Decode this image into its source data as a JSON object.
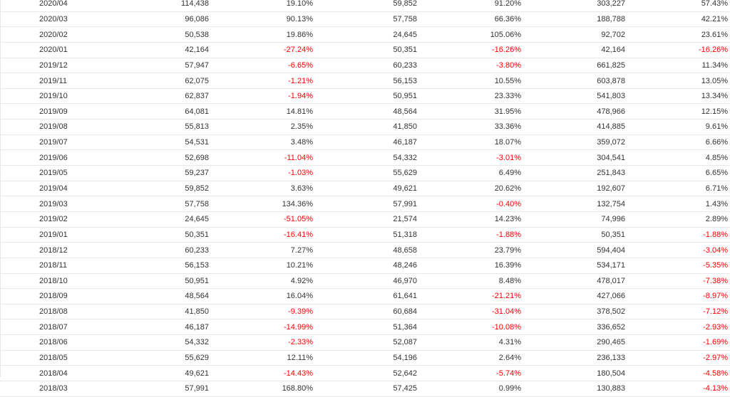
{
  "table": {
    "rows": [
      {
        "month": "2020/04",
        "v1": "114,438",
        "p1": "19.10%",
        "v2": "59,852",
        "p2": "91.20%",
        "v3": "303,227",
        "p3": "57.43%"
      },
      {
        "month": "2020/03",
        "v1": "96,086",
        "p1": "90.13%",
        "v2": "57,758",
        "p2": "66.36%",
        "v3": "188,788",
        "p3": "42.21%"
      },
      {
        "month": "2020/02",
        "v1": "50,538",
        "p1": "19.86%",
        "v2": "24,645",
        "p2": "105.06%",
        "v3": "92,702",
        "p3": "23.61%"
      },
      {
        "month": "2020/01",
        "v1": "42,164",
        "p1": "-27.24%",
        "v2": "50,351",
        "p2": "-16.26%",
        "v3": "42,164",
        "p3": "-16.26%"
      },
      {
        "month": "2019/12",
        "v1": "57,947",
        "p1": "-6.65%",
        "v2": "60,233",
        "p2": "-3.80%",
        "v3": "661,825",
        "p3": "11.34%"
      },
      {
        "month": "2019/11",
        "v1": "62,075",
        "p1": "-1.21%",
        "v2": "56,153",
        "p2": "10.55%",
        "v3": "603,878",
        "p3": "13.05%"
      },
      {
        "month": "2019/10",
        "v1": "62,837",
        "p1": "-1.94%",
        "v2": "50,951",
        "p2": "23.33%",
        "v3": "541,803",
        "p3": "13.34%"
      },
      {
        "month": "2019/09",
        "v1": "64,081",
        "p1": "14.81%",
        "v2": "48,564",
        "p2": "31.95%",
        "v3": "478,966",
        "p3": "12.15%"
      },
      {
        "month": "2019/08",
        "v1": "55,813",
        "p1": "2.35%",
        "v2": "41,850",
        "p2": "33.36%",
        "v3": "414,885",
        "p3": "9.61%"
      },
      {
        "month": "2019/07",
        "v1": "54,531",
        "p1": "3.48%",
        "v2": "46,187",
        "p2": "18.07%",
        "v3": "359,072",
        "p3": "6.66%"
      },
      {
        "month": "2019/06",
        "v1": "52,698",
        "p1": "-11.04%",
        "v2": "54,332",
        "p2": "-3.01%",
        "v3": "304,541",
        "p3": "4.85%"
      },
      {
        "month": "2019/05",
        "v1": "59,237",
        "p1": "-1.03%",
        "v2": "55,629",
        "p2": "6.49%",
        "v3": "251,843",
        "p3": "6.65%"
      },
      {
        "month": "2019/04",
        "v1": "59,852",
        "p1": "3.63%",
        "v2": "49,621",
        "p2": "20.62%",
        "v3": "192,607",
        "p3": "6.71%"
      },
      {
        "month": "2019/03",
        "v1": "57,758",
        "p1": "134.36%",
        "v2": "57,991",
        "p2": "-0.40%",
        "v3": "132,754",
        "p3": "1.43%"
      },
      {
        "month": "2019/02",
        "v1": "24,645",
        "p1": "-51.05%",
        "v2": "21,574",
        "p2": "14.23%",
        "v3": "74,996",
        "p3": "2.89%"
      },
      {
        "month": "2019/01",
        "v1": "50,351",
        "p1": "-16.41%",
        "v2": "51,318",
        "p2": "-1.88%",
        "v3": "50,351",
        "p3": "-1.88%"
      },
      {
        "month": "2018/12",
        "v1": "60,233",
        "p1": "7.27%",
        "v2": "48,658",
        "p2": "23.79%",
        "v3": "594,404",
        "p3": "-3.04%"
      },
      {
        "month": "2018/11",
        "v1": "56,153",
        "p1": "10.21%",
        "v2": "48,246",
        "p2": "16.39%",
        "v3": "534,171",
        "p3": "-5.35%"
      },
      {
        "month": "2018/10",
        "v1": "50,951",
        "p1": "4.92%",
        "v2": "46,970",
        "p2": "8.48%",
        "v3": "478,017",
        "p3": "-7.38%"
      },
      {
        "month": "2018/09",
        "v1": "48,564",
        "p1": "16.04%",
        "v2": "61,641",
        "p2": "-21.21%",
        "v3": "427,066",
        "p3": "-8.97%"
      },
      {
        "month": "2018/08",
        "v1": "41,850",
        "p1": "-9.39%",
        "v2": "60,684",
        "p2": "-31.04%",
        "v3": "378,502",
        "p3": "-7.12%"
      },
      {
        "month": "2018/07",
        "v1": "46,187",
        "p1": "-14.99%",
        "v2": "51,364",
        "p2": "-10.08%",
        "v3": "336,652",
        "p3": "-2.93%"
      },
      {
        "month": "2018/06",
        "v1": "54,332",
        "p1": "-2.33%",
        "v2": "52,087",
        "p2": "4.31%",
        "v3": "290,465",
        "p3": "-1.69%"
      },
      {
        "month": "2018/05",
        "v1": "55,629",
        "p1": "12.11%",
        "v2": "54,196",
        "p2": "2.64%",
        "v3": "236,133",
        "p3": "-2.97%"
      },
      {
        "month": "2018/04",
        "v1": "49,621",
        "p1": "-14.43%",
        "v2": "52,642",
        "p2": "-5.74%",
        "v3": "180,504",
        "p3": "-4.58%"
      },
      {
        "month": "2018/03",
        "v1": "57,991",
        "p1": "168.80%",
        "v2": "57,425",
        "p2": "0.99%",
        "v3": "130,883",
        "p3": "-4.13%"
      }
    ]
  },
  "colors": {
    "text": "#333333",
    "negative": "#ff0000",
    "row_border": "#e8e8e8"
  }
}
